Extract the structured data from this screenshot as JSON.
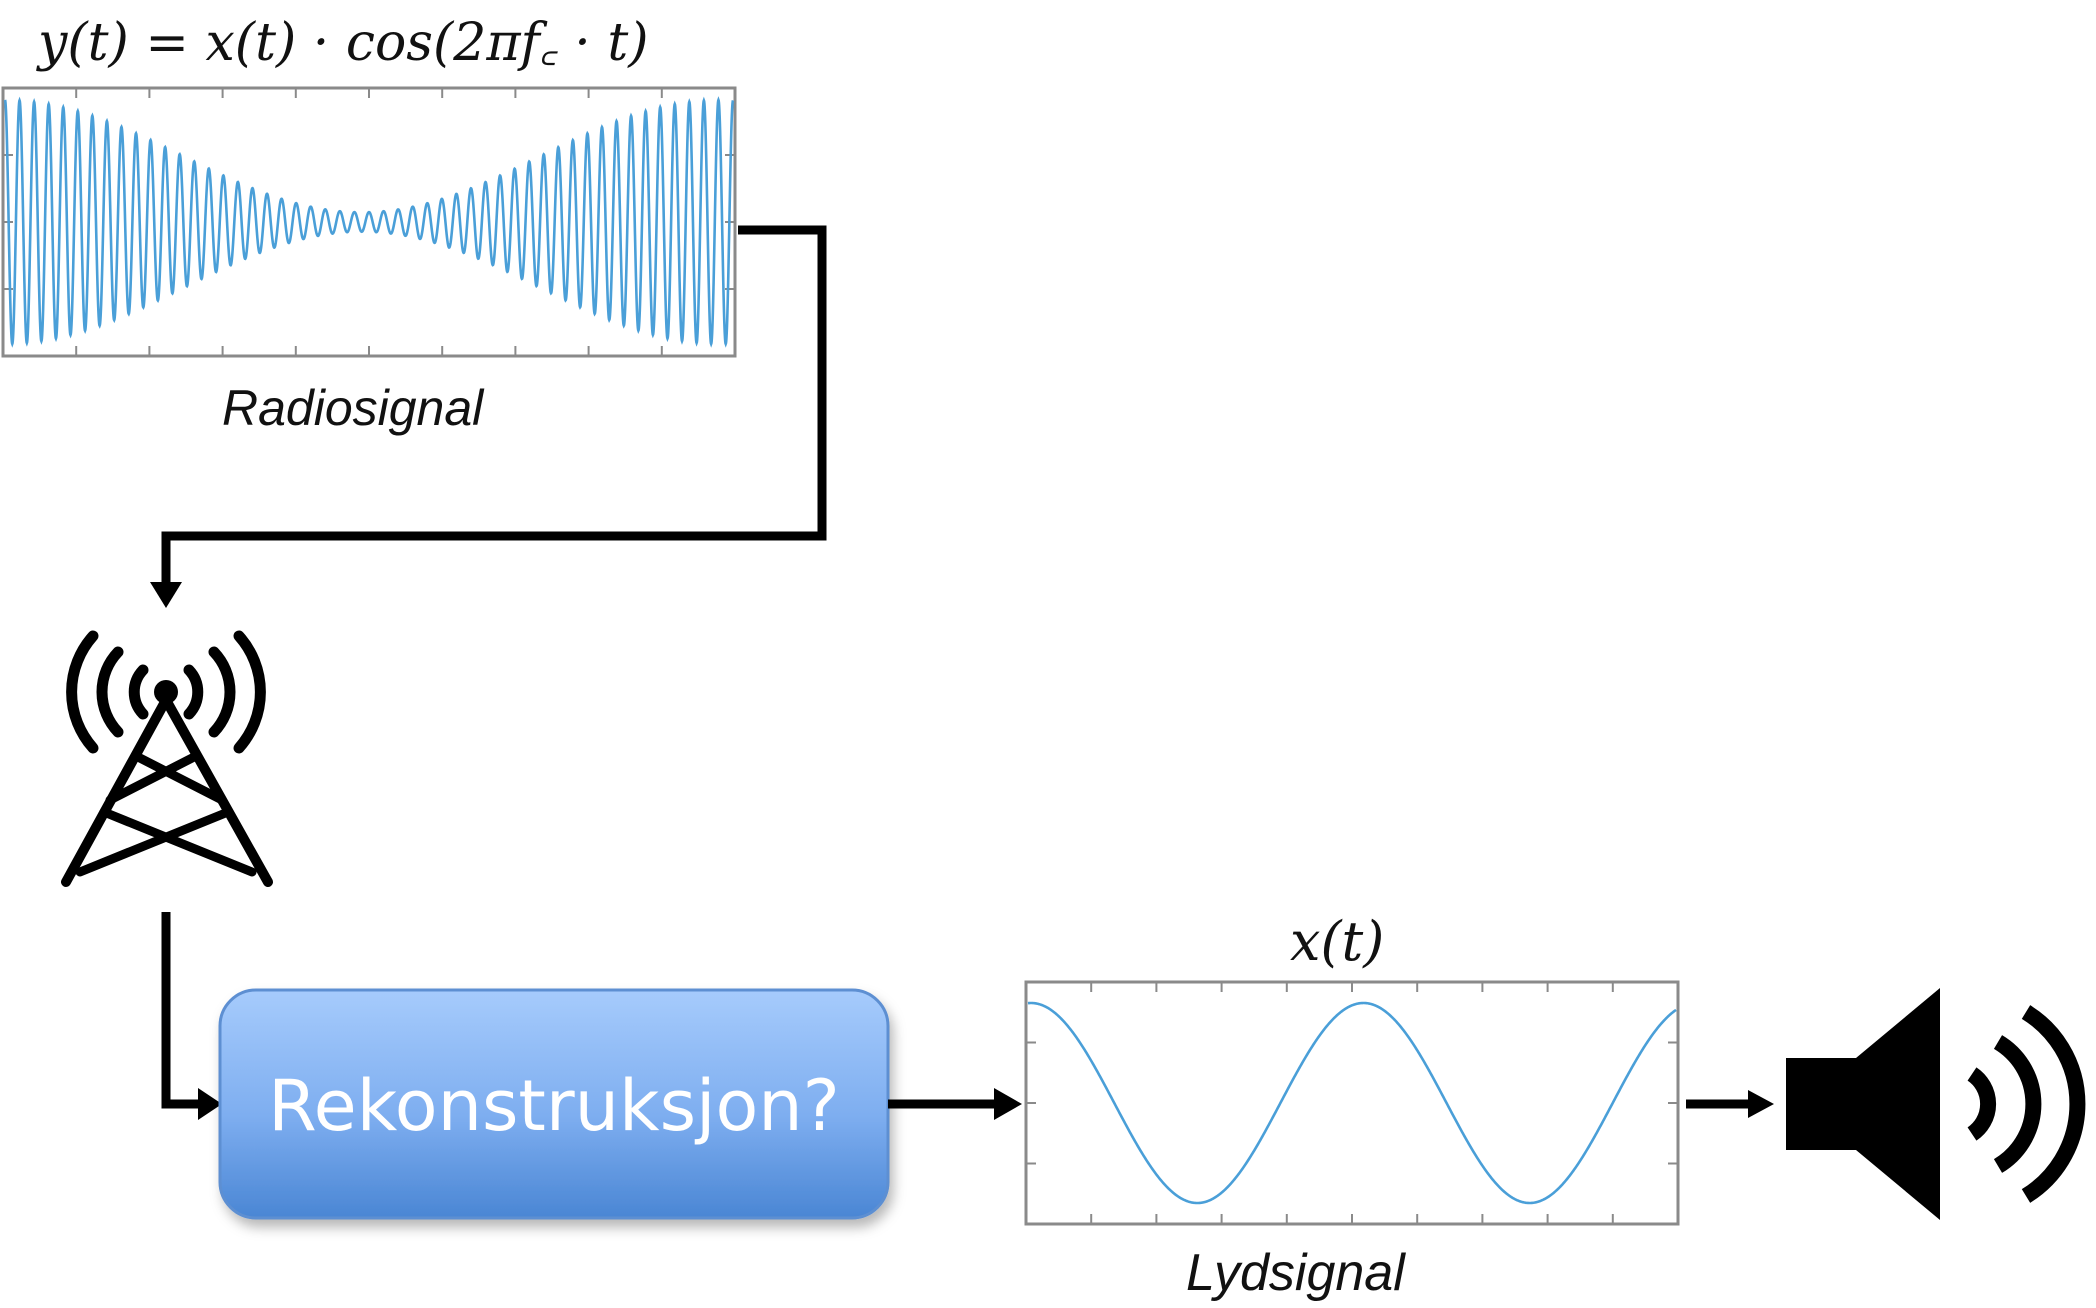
{
  "top_plot": {
    "formula": "y(t) = x(t) · cos(2πf꜀ · t)",
    "caption": "Radiosignal"
  },
  "block": {
    "label": "Rekonstruksjon?"
  },
  "bottom_plot": {
    "formula": "x(t)",
    "caption": "Lydsignal"
  },
  "icons": {
    "antenna": "radio-tower-icon",
    "speaker": "speaker-icon"
  },
  "colors": {
    "wave": "#4a9fd8",
    "block_top": "#a4c8fb",
    "block_bottom": "#4a88d6",
    "arrows": "#000000"
  }
}
